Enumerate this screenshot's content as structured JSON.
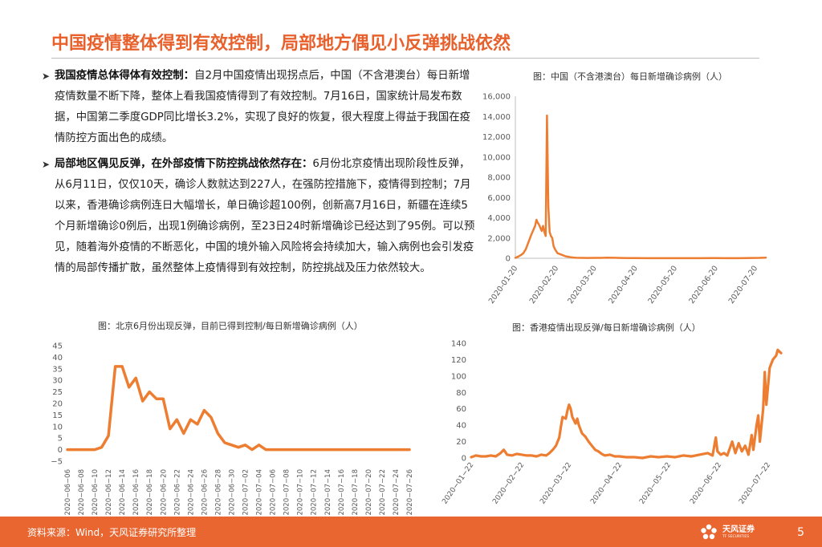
{
  "page": {
    "title": "中国疫情整体得到有效控制，局部地方偶见小反弹挑战依然",
    "page_number": "5",
    "source": "资料来源：Wind，天风证券研究所整理",
    "logo_cn": "天风证券",
    "logo_en": "TF SECURITIES",
    "accent": "#e8602c",
    "bullet_icon": "arrow-bullet-icon"
  },
  "bullets": [
    {
      "lead": "我国疫情总体得体有效控制：",
      "text": "自2月中国疫情出现拐点后，中国（不含港澳台）每日新增疫情数量不断下降，整体上看我国疫情得到了有效控制。7月16日，国家统计局发布数据，中国第二季度GDP同比增长3.2%，实现了良好的恢复，很大程度上得益于我国在疫情防控方面出色的成绩。"
    },
    {
      "lead": "局部地区偶见反弹，在外部疫情下防控挑战依然存在：",
      "text": "6月份北京疫情出现阶段性反弹，从6月11日，仅仅10天，确诊人数就达到227人，在强防控措施下，疫情得到控制；7月以来，香港确诊病例连日大幅增长，单日确诊超100例，创新高7月16日，新疆在连续5个月新增确诊0例后，出现1例确诊病例，至23日24时新增确诊已经达到了95例。可以预见，随着海外疫情的不断恶化，中国的境外输入风险将会持续加大，输入病例也会引发疫情的局部传播扩散，虽然整体上疫情得到有效控制，防控挑战及压力依然较大。"
    }
  ],
  "chart_data": [
    {
      "id": "china",
      "type": "line",
      "title": "图：中国（不含港澳台）每日新增确诊病例（人）",
      "color": "#ed7d31",
      "ylim": [
        0,
        16000
      ],
      "yticks": [
        0,
        2000,
        4000,
        6000,
        8000,
        10000,
        12000,
        14000,
        16000
      ],
      "ytick_labels": [
        "0",
        "2,000",
        "4,000",
        "6,000",
        "8,000",
        "10,000",
        "12,000",
        "14,000",
        "16,000"
      ],
      "xlim": [
        0,
        190
      ],
      "xtick_pos": [
        0,
        31,
        60,
        91,
        121,
        152,
        182
      ],
      "xtick_labels": [
        "2020-01-20",
        "2020-02-20",
        "2020-03-20",
        "2020-04-20",
        "2020-05-20",
        "2020-06-20",
        "2020-07-20"
      ],
      "points": [
        [
          0,
          50
        ],
        [
          2,
          150
        ],
        [
          4,
          300
        ],
        [
          6,
          500
        ],
        [
          8,
          900
        ],
        [
          10,
          1600
        ],
        [
          12,
          2300
        ],
        [
          14,
          2900
        ],
        [
          15,
          3200
        ],
        [
          16,
          3800
        ],
        [
          17,
          3500
        ],
        [
          18,
          3300
        ],
        [
          19,
          3000
        ],
        [
          20,
          2700
        ],
        [
          21,
          3200
        ],
        [
          22,
          2600
        ],
        [
          23,
          2200
        ],
        [
          24,
          14100
        ],
        [
          25,
          5100
        ],
        [
          26,
          2600
        ],
        [
          27,
          2200
        ],
        [
          28,
          2000
        ],
        [
          29,
          1200
        ],
        [
          30,
          900
        ],
        [
          32,
          500
        ],
        [
          34,
          400
        ],
        [
          36,
          300
        ],
        [
          38,
          200
        ],
        [
          40,
          150
        ],
        [
          42,
          100
        ],
        [
          44,
          70
        ],
        [
          46,
          50
        ],
        [
          50,
          40
        ],
        [
          55,
          30
        ],
        [
          60,
          40
        ],
        [
          65,
          40
        ],
        [
          70,
          60
        ],
        [
          75,
          50
        ],
        [
          80,
          35
        ],
        [
          85,
          25
        ],
        [
          90,
          20
        ],
        [
          100,
          10
        ],
        [
          110,
          5
        ],
        [
          120,
          5
        ],
        [
          130,
          5
        ],
        [
          140,
          8
        ],
        [
          150,
          15
        ],
        [
          160,
          10
        ],
        [
          165,
          5
        ],
        [
          170,
          8
        ],
        [
          175,
          15
        ],
        [
          180,
          30
        ],
        [
          185,
          40
        ],
        [
          190,
          60
        ]
      ]
    },
    {
      "id": "beijing",
      "type": "line",
      "title": "图：北京6月份出现反弹，目前已得到控制/每日新增确诊病例（人）",
      "color": "#ed7d31",
      "ylim": [
        -5,
        45
      ],
      "yticks": [
        -5,
        0,
        5,
        10,
        15,
        20,
        25,
        30,
        35,
        40,
        45
      ],
      "ytick_labels": [
        "−5",
        "0",
        "5",
        "10",
        "15",
        "20",
        "25",
        "30",
        "35",
        "40",
        "45"
      ],
      "x": [
        "2020-06-06",
        "2020-06-07",
        "2020-06-08",
        "2020-06-09",
        "2020-06-10",
        "2020-06-11",
        "2020-06-12",
        "2020-06-13",
        "2020-06-14",
        "2020-06-15",
        "2020-06-16",
        "2020-06-17",
        "2020-06-18",
        "2020-06-19",
        "2020-06-20",
        "2020-06-21",
        "2020-06-22",
        "2020-06-23",
        "2020-06-24",
        "2020-06-25",
        "2020-06-26",
        "2020-06-27",
        "2020-06-28",
        "2020-06-29",
        "2020-06-30",
        "2020-07-01",
        "2020-07-02",
        "2020-07-03",
        "2020-07-04",
        "2020-07-05",
        "2020-07-06",
        "2020-07-07",
        "2020-07-08",
        "2020-07-09",
        "2020-07-10",
        "2020-07-11",
        "2020-07-12",
        "2020-07-13",
        "2020-07-14",
        "2020-07-15",
        "2020-07-16",
        "2020-07-17",
        "2020-07-18",
        "2020-07-19",
        "2020-07-20",
        "2020-07-21",
        "2020-07-22",
        "2020-07-23",
        "2020-07-24",
        "2020-07-25",
        "2020-07-26"
      ],
      "xtick_labels": [
        "2020−06−06",
        "2020−06−08",
        "2020−06−10",
        "2020−06−12",
        "2020−06−14",
        "2020−06−16",
        "2020−06−18",
        "2020−06−20",
        "2020−06−22",
        "2020−06−24",
        "2020−06−26",
        "2020−06−28",
        "2020−06−30",
        "2020−07−02",
        "2020−07−04",
        "2020−07−06",
        "2020−07−08",
        "2020−07−10",
        "2020−07−12",
        "2020−07−14",
        "2020−07−16",
        "2020−07−18",
        "2020−07−20",
        "2020−07−22",
        "2020−07−24",
        "2020−07−26"
      ],
      "values": [
        0,
        0,
        0,
        0,
        0,
        1,
        6,
        36,
        36,
        27,
        31,
        21,
        25,
        22,
        22,
        9,
        13,
        7,
        13,
        11,
        17,
        14,
        7,
        3,
        2,
        1,
        2,
        0,
        2,
        0,
        0,
        0,
        0,
        0,
        0,
        0,
        0,
        0,
        0,
        0,
        0,
        0,
        0,
        0,
        0,
        0,
        0,
        0,
        0,
        0,
        0
      ]
    },
    {
      "id": "hongkong",
      "type": "line",
      "title": "图：香港疫情出现反弹/每日新增确诊病例（人）",
      "color": "#ed7d31",
      "ylim": [
        0,
        140
      ],
      "yticks": [
        0,
        20,
        40,
        60,
        80,
        100,
        120,
        140
      ],
      "ytick_labels": [
        "0",
        "20",
        "40",
        "60",
        "80",
        "100",
        "120",
        "140"
      ],
      "xlim": [
        0,
        190
      ],
      "xtick_pos": [
        0,
        31,
        60,
        91,
        121,
        152,
        182
      ],
      "xtick_labels": [
        "2020−01−22",
        "2020−02−22",
        "2020−03−22",
        "2020−04−22",
        "2020−05−22",
        "2020−06−22",
        "2020−07−22"
      ],
      "points": [
        [
          0,
          1
        ],
        [
          3,
          3
        ],
        [
          6,
          2
        ],
        [
          9,
          2
        ],
        [
          12,
          3
        ],
        [
          15,
          2
        ],
        [
          18,
          6
        ],
        [
          20,
          10
        ],
        [
          22,
          4
        ],
        [
          25,
          3
        ],
        [
          28,
          5
        ],
        [
          31,
          4
        ],
        [
          34,
          3
        ],
        [
          37,
          3
        ],
        [
          40,
          2
        ],
        [
          43,
          4
        ],
        [
          46,
          3
        ],
        [
          48,
          6
        ],
        [
          50,
          10
        ],
        [
          52,
          15
        ],
        [
          54,
          25
        ],
        [
          55,
          38
        ],
        [
          56,
          50
        ],
        [
          58,
          48
        ],
        [
          59,
          58
        ],
        [
          60,
          65
        ],
        [
          61,
          60
        ],
        [
          62,
          50
        ],
        [
          64,
          42
        ],
        [
          65,
          48
        ],
        [
          66,
          40
        ],
        [
          68,
          30
        ],
        [
          70,
          26
        ],
        [
          72,
          20
        ],
        [
          74,
          15
        ],
        [
          76,
          10
        ],
        [
          78,
          8
        ],
        [
          80,
          5
        ],
        [
          82,
          3
        ],
        [
          85,
          4
        ],
        [
          88,
          2
        ],
        [
          91,
          2
        ],
        [
          95,
          1
        ],
        [
          100,
          1
        ],
        [
          105,
          0
        ],
        [
          110,
          2
        ],
        [
          115,
          1
        ],
        [
          120,
          2
        ],
        [
          125,
          1
        ],
        [
          130,
          3
        ],
        [
          135,
          2
        ],
        [
          140,
          4
        ],
        [
          145,
          6
        ],
        [
          148,
          3
        ],
        [
          150,
          25
        ],
        [
          151,
          8
        ],
        [
          153,
          4
        ],
        [
          155,
          6
        ],
        [
          157,
          3
        ],
        [
          160,
          20
        ],
        [
          162,
          6
        ],
        [
          164,
          18
        ],
        [
          166,
          8
        ],
        [
          168,
          15
        ],
        [
          170,
          4
        ],
        [
          172,
          28
        ],
        [
          173,
          10
        ],
        [
          175,
          40
        ],
        [
          176,
          52
        ],
        [
          177,
          20
        ],
        [
          179,
          60
        ],
        [
          180,
          105
        ],
        [
          181,
          65
        ],
        [
          183,
          110
        ],
        [
          185,
          120
        ],
        [
          187,
          125
        ],
        [
          188,
          132
        ],
        [
          190,
          128
        ]
      ]
    }
  ]
}
